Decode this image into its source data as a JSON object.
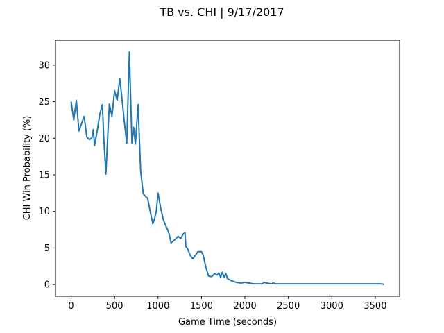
{
  "chart_data": {
    "type": "line",
    "title": "TB vs. CHI | 9/17/2017",
    "xlabel": "Game Time (seconds)",
    "ylabel": "CHI Win Probability (%)",
    "xlim": [
      -180,
      3780
    ],
    "ylim": [
      -1.6,
      33.4
    ],
    "xticks": [
      0,
      500,
      1000,
      1500,
      2000,
      2500,
      3000,
      3500
    ],
    "yticks": [
      0,
      5,
      10,
      15,
      20,
      25,
      30
    ],
    "grid": false,
    "legend": "none",
    "series": [
      {
        "color": "#1f77b4",
        "x": [
          0,
          30,
          60,
          90,
          120,
          150,
          180,
          210,
          240,
          255,
          270,
          300,
          330,
          360,
          375,
          400,
          420,
          440,
          470,
          500,
          530,
          560,
          580,
          610,
          640,
          670,
          700,
          720,
          740,
          770,
          800,
          830,
          860,
          880,
          910,
          940,
          960,
          980,
          1000,
          1030,
          1060,
          1090,
          1110,
          1130,
          1150,
          1170,
          1180,
          1200,
          1230,
          1260,
          1290,
          1310,
          1320,
          1340,
          1370,
          1400,
          1430,
          1460,
          1480,
          1500,
          1520,
          1550,
          1580,
          1600,
          1620,
          1650,
          1680,
          1700,
          1720,
          1740,
          1760,
          1780,
          1800,
          1850,
          1900,
          1950,
          2000,
          2050,
          2100,
          2150,
          2200,
          2220,
          2250,
          2300,
          2330,
          2350,
          2400,
          3500,
          3560,
          3590,
          3600
        ],
        "y": [
          25.0,
          22.5,
          25.2,
          21.0,
          22.0,
          23.0,
          20.2,
          19.8,
          20.1,
          21.2,
          19.0,
          21.0,
          23.3,
          24.6,
          20.2,
          15.1,
          20.0,
          24.7,
          23.0,
          26.5,
          25.2,
          28.2,
          26.0,
          22.5,
          19.3,
          31.8,
          19.3,
          21.5,
          19.2,
          24.6,
          15.5,
          12.4,
          12.0,
          11.8,
          10.0,
          8.3,
          9.0,
          10.0,
          12.5,
          10.5,
          8.9,
          8.0,
          7.5,
          6.8,
          5.7,
          5.9,
          6.0,
          6.2,
          6.6,
          6.3,
          6.9,
          7.1,
          5.2,
          4.9,
          4.0,
          3.5,
          4.0,
          4.5,
          4.5,
          4.5,
          4.0,
          2.4,
          1.2,
          1.1,
          1.1,
          1.5,
          1.3,
          1.6,
          1.0,
          1.7,
          1.0,
          1.5,
          0.8,
          0.5,
          0.3,
          0.2,
          0.3,
          0.2,
          0.1,
          0.1,
          0.1,
          0.3,
          0.2,
          0.1,
          0.2,
          0.1,
          0.1,
          0.1,
          0.1,
          0.05,
          0.0
        ]
      }
    ]
  }
}
